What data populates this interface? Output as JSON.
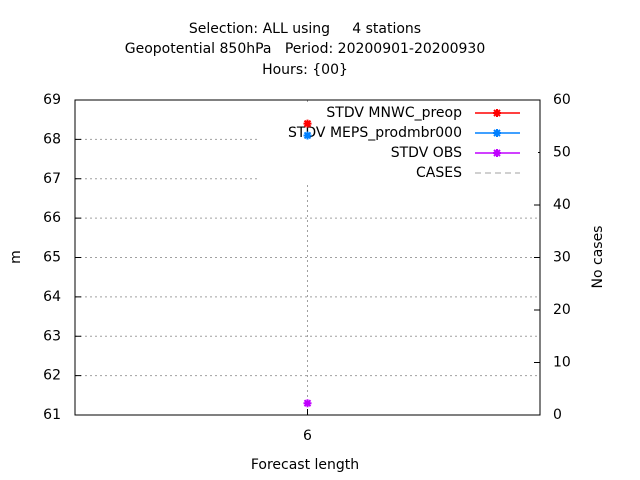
{
  "chart_data": {
    "type": "line",
    "title": [
      "Selection: ALL using     4 stations",
      "Geopotential 850hPa   Period: 20200901-20200930",
      "Hours: {00}"
    ],
    "xlabel": "Forecast length",
    "ylabel": "m",
    "y2label": "No cases",
    "x": [
      6
    ],
    "xlim": [
      5,
      7
    ],
    "xticks": [
      6
    ],
    "ylim": [
      61,
      69
    ],
    "yticks": [
      61,
      62,
      63,
      64,
      65,
      66,
      67,
      68,
      69
    ],
    "y2lim": [
      0,
      60
    ],
    "y2ticks": [
      0,
      10,
      20,
      30,
      40,
      50,
      60
    ],
    "grid": true,
    "legend": "top-right",
    "series": [
      {
        "name": "STDV MNWC_preop",
        "color": "#ff0000",
        "values": [
          68.4
        ]
      },
      {
        "name": "STDV MEPS_prodmbr000",
        "color": "#0080ff",
        "values": [
          68.1
        ]
      },
      {
        "name": "STDV OBS",
        "color": "#c000ff",
        "values": [
          61.3
        ]
      },
      {
        "name": "CASES",
        "color": "#a0a0a0",
        "values": [
          null
        ],
        "axis": "y2"
      }
    ]
  }
}
